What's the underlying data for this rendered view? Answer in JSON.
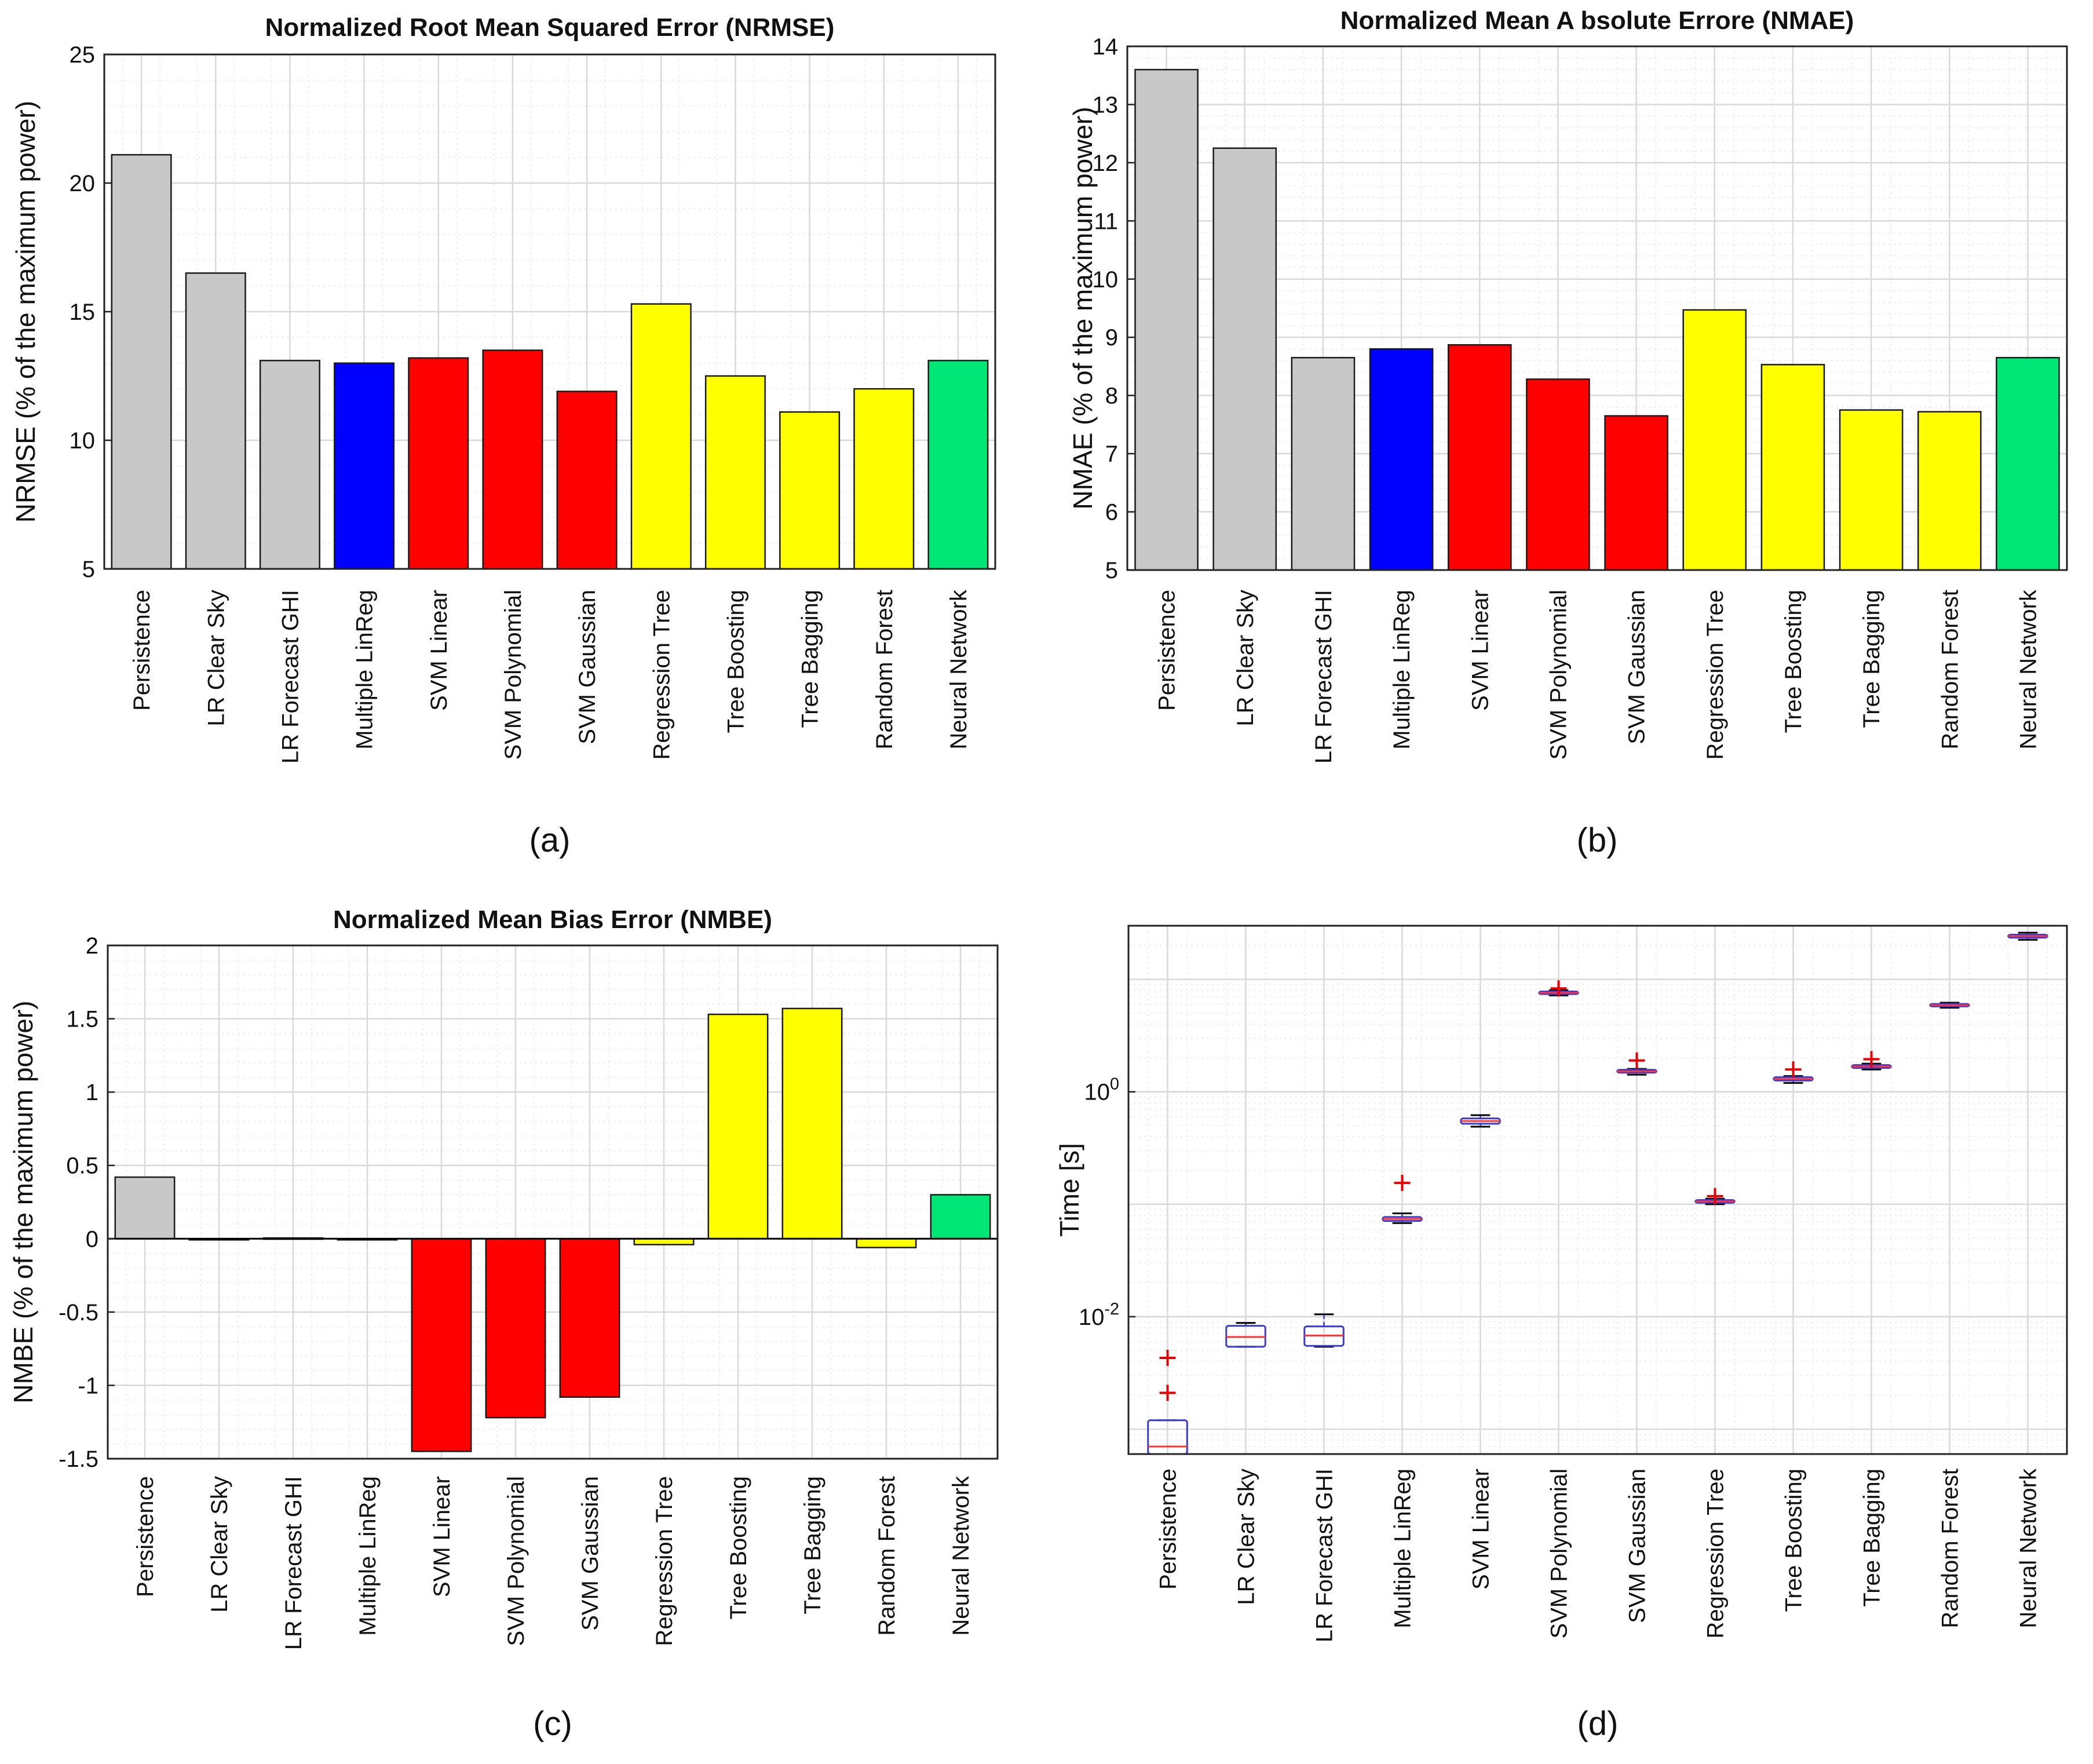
{
  "colors": {
    "gray": "#c8c8c8",
    "blue": "#0000ff",
    "red": "#ff0000",
    "yellow": "#ffff00",
    "green": "#00e676",
    "grid": "#d9d9d9",
    "minor_grid": "#eeeeee",
    "box_edge": "#3b3bd6",
    "median": "#ff3333",
    "outlier": "#e60000"
  },
  "chart_data": [
    {
      "id": "a",
      "type": "bar",
      "panel_label": "(a)",
      "title": "Normalized Root Mean Squared Error (NRMSE)",
      "ylabel": "NRMSE (% of the maximum power)",
      "xlabel": "",
      "categories": [
        "Persistence",
        "LR Clear Sky",
        "LR Forecast GHI",
        "Multiple LinReg",
        "SVM Linear",
        "SVM Polynomial",
        "SVM Gaussian",
        "Regression Tree",
        "Tree Boosting",
        "Tree Bagging",
        "Random Forest",
        "Neural Network"
      ],
      "values": [
        21.1,
        16.5,
        13.1,
        13.0,
        13.2,
        13.5,
        11.9,
        15.3,
        12.5,
        11.1,
        12.0,
        13.1
      ],
      "bar_colors": [
        "gray",
        "gray",
        "gray",
        "blue",
        "red",
        "red",
        "red",
        "yellow",
        "yellow",
        "yellow",
        "yellow",
        "green"
      ],
      "ylim": [
        5,
        25
      ],
      "yticks": [
        5,
        10,
        15,
        20,
        25
      ],
      "ytick_labels": [
        "5",
        "10",
        "15",
        "20",
        "25"
      ],
      "grid": true
    },
    {
      "id": "b",
      "type": "bar",
      "panel_label": "(b)",
      "title": "Normalized Mean A bsolute Errore (NMAE)",
      "ylabel": "NMAE (% of the maximum power)",
      "xlabel": "",
      "categories": [
        "Persistence",
        "LR Clear Sky",
        "LR Forecast GHI",
        "Multiple LinReg",
        "SVM Linear",
        "SVM Polynomial",
        "SVM Gaussian",
        "Regression Tree",
        "Tree Boosting",
        "Tree Bagging",
        "Random Forest",
        "Neural Network"
      ],
      "values": [
        13.6,
        12.25,
        8.65,
        8.8,
        8.87,
        8.28,
        7.65,
        9.47,
        8.53,
        7.75,
        7.72,
        8.65
      ],
      "bar_colors": [
        "gray",
        "gray",
        "gray",
        "blue",
        "red",
        "red",
        "red",
        "yellow",
        "yellow",
        "yellow",
        "yellow",
        "green"
      ],
      "ylim": [
        5,
        14
      ],
      "yticks": [
        5,
        6,
        7,
        8,
        9,
        10,
        11,
        12,
        13,
        14
      ],
      "ytick_labels": [
        "5",
        "6",
        "7",
        "8",
        "9",
        "10",
        "11",
        "12",
        "13",
        "14"
      ],
      "grid": true
    },
    {
      "id": "c",
      "type": "bar",
      "panel_label": "(c)",
      "title": "Normalized Mean Bias Error (NMBE)",
      "ylabel": "NMBE (% of the maximum power)",
      "xlabel": "",
      "categories": [
        "Persistence",
        "LR Clear Sky",
        "LR Forecast GHI",
        "Multiple LinReg",
        "SVM Linear",
        "SVM Polynomial",
        "SVM Gaussian",
        "Regression Tree",
        "Tree Boosting",
        "Tree Bagging",
        "Random Forest",
        "Neural Network"
      ],
      "values": [
        0.42,
        -0.005,
        0.005,
        -0.005,
        -1.45,
        -1.22,
        -1.08,
        -0.04,
        1.53,
        1.57,
        -0.06,
        0.3
      ],
      "bar_colors": [
        "gray",
        "gray",
        "gray",
        "blue",
        "red",
        "red",
        "red",
        "yellow",
        "yellow",
        "yellow",
        "yellow",
        "green"
      ],
      "ylim": [
        -1.5,
        2
      ],
      "yticks": [
        -1.5,
        -1,
        -0.5,
        0,
        0.5,
        1,
        1.5,
        2
      ],
      "ytick_labels": [
        "-1.5",
        "-1",
        "-0.5",
        "0",
        "0.5",
        "1",
        "1.5",
        "2"
      ],
      "grid": true
    },
    {
      "id": "d",
      "type": "box",
      "yscale": "log",
      "panel_label": "(d)",
      "title": "",
      "ylabel": "Time [s]",
      "xlabel": "",
      "categories": [
        "Persistence",
        "LR Clear Sky",
        "LR Forecast GHI",
        "Multiple LinReg",
        "SVM Linear",
        "SVM Polynomial",
        "SVM Gaussian",
        "Regression Tree",
        "Tree Boosting",
        "Tree Bagging",
        "Random Forest",
        "Neural Network"
      ],
      "boxes": [
        {
          "whisker_low": 0.0006,
          "q1": 0.0006,
          "median": 0.0007,
          "q3": 0.0012,
          "whisker_high": 0.0012,
          "outliers": [
            0.0021,
            0.0043
          ]
        },
        {
          "whisker_low": 0.0054,
          "q1": 0.0054,
          "median": 0.0066,
          "q3": 0.0083,
          "whisker_high": 0.0088,
          "outliers": []
        },
        {
          "whisker_low": 0.0054,
          "q1": 0.0055,
          "median": 0.0068,
          "q3": 0.0082,
          "whisker_high": 0.0105,
          "outliers": []
        },
        {
          "whisker_low": 0.068,
          "q1": 0.071,
          "median": 0.074,
          "q3": 0.077,
          "whisker_high": 0.083,
          "outliers": [
            0.155
          ]
        },
        {
          "whisker_low": 0.49,
          "q1": 0.52,
          "median": 0.55,
          "q3": 0.58,
          "whisker_high": 0.62,
          "outliers": []
        },
        {
          "whisker_low": 7.2,
          "q1": 7.4,
          "median": 7.6,
          "q3": 7.8,
          "whisker_high": 8.0,
          "outliers": [
            8.3
          ]
        },
        {
          "whisker_low": 1.42,
          "q1": 1.48,
          "median": 1.52,
          "q3": 1.57,
          "whisker_high": 1.6,
          "outliers": [
            1.9
          ]
        },
        {
          "whisker_low": 0.1,
          "q1": 0.103,
          "median": 0.106,
          "q3": 0.109,
          "whisker_high": 0.112,
          "outliers": [
            0.118
          ]
        },
        {
          "whisker_low": 1.2,
          "q1": 1.26,
          "median": 1.3,
          "q3": 1.35,
          "whisker_high": 1.38,
          "outliers": [
            1.58
          ]
        },
        {
          "whisker_low": 1.58,
          "q1": 1.63,
          "median": 1.68,
          "q3": 1.73,
          "whisker_high": 1.78,
          "outliers": [
            1.95
          ]
        },
        {
          "whisker_low": 5.6,
          "q1": 5.75,
          "median": 5.9,
          "q3": 6.05,
          "whisker_high": 6.2,
          "outliers": []
        },
        {
          "whisker_low": 22.5,
          "q1": 23.5,
          "median": 24.3,
          "q3": 25.0,
          "whisker_high": 26.0,
          "outliers": []
        }
      ],
      "ylim": [
        0.0006,
        30
      ],
      "yticks": [
        0.01,
        1
      ],
      "ytick_labels": [
        {
          "base": "10",
          "exp": "-2"
        },
        {
          "base": "10",
          "exp": "0"
        }
      ],
      "grid": true
    }
  ]
}
